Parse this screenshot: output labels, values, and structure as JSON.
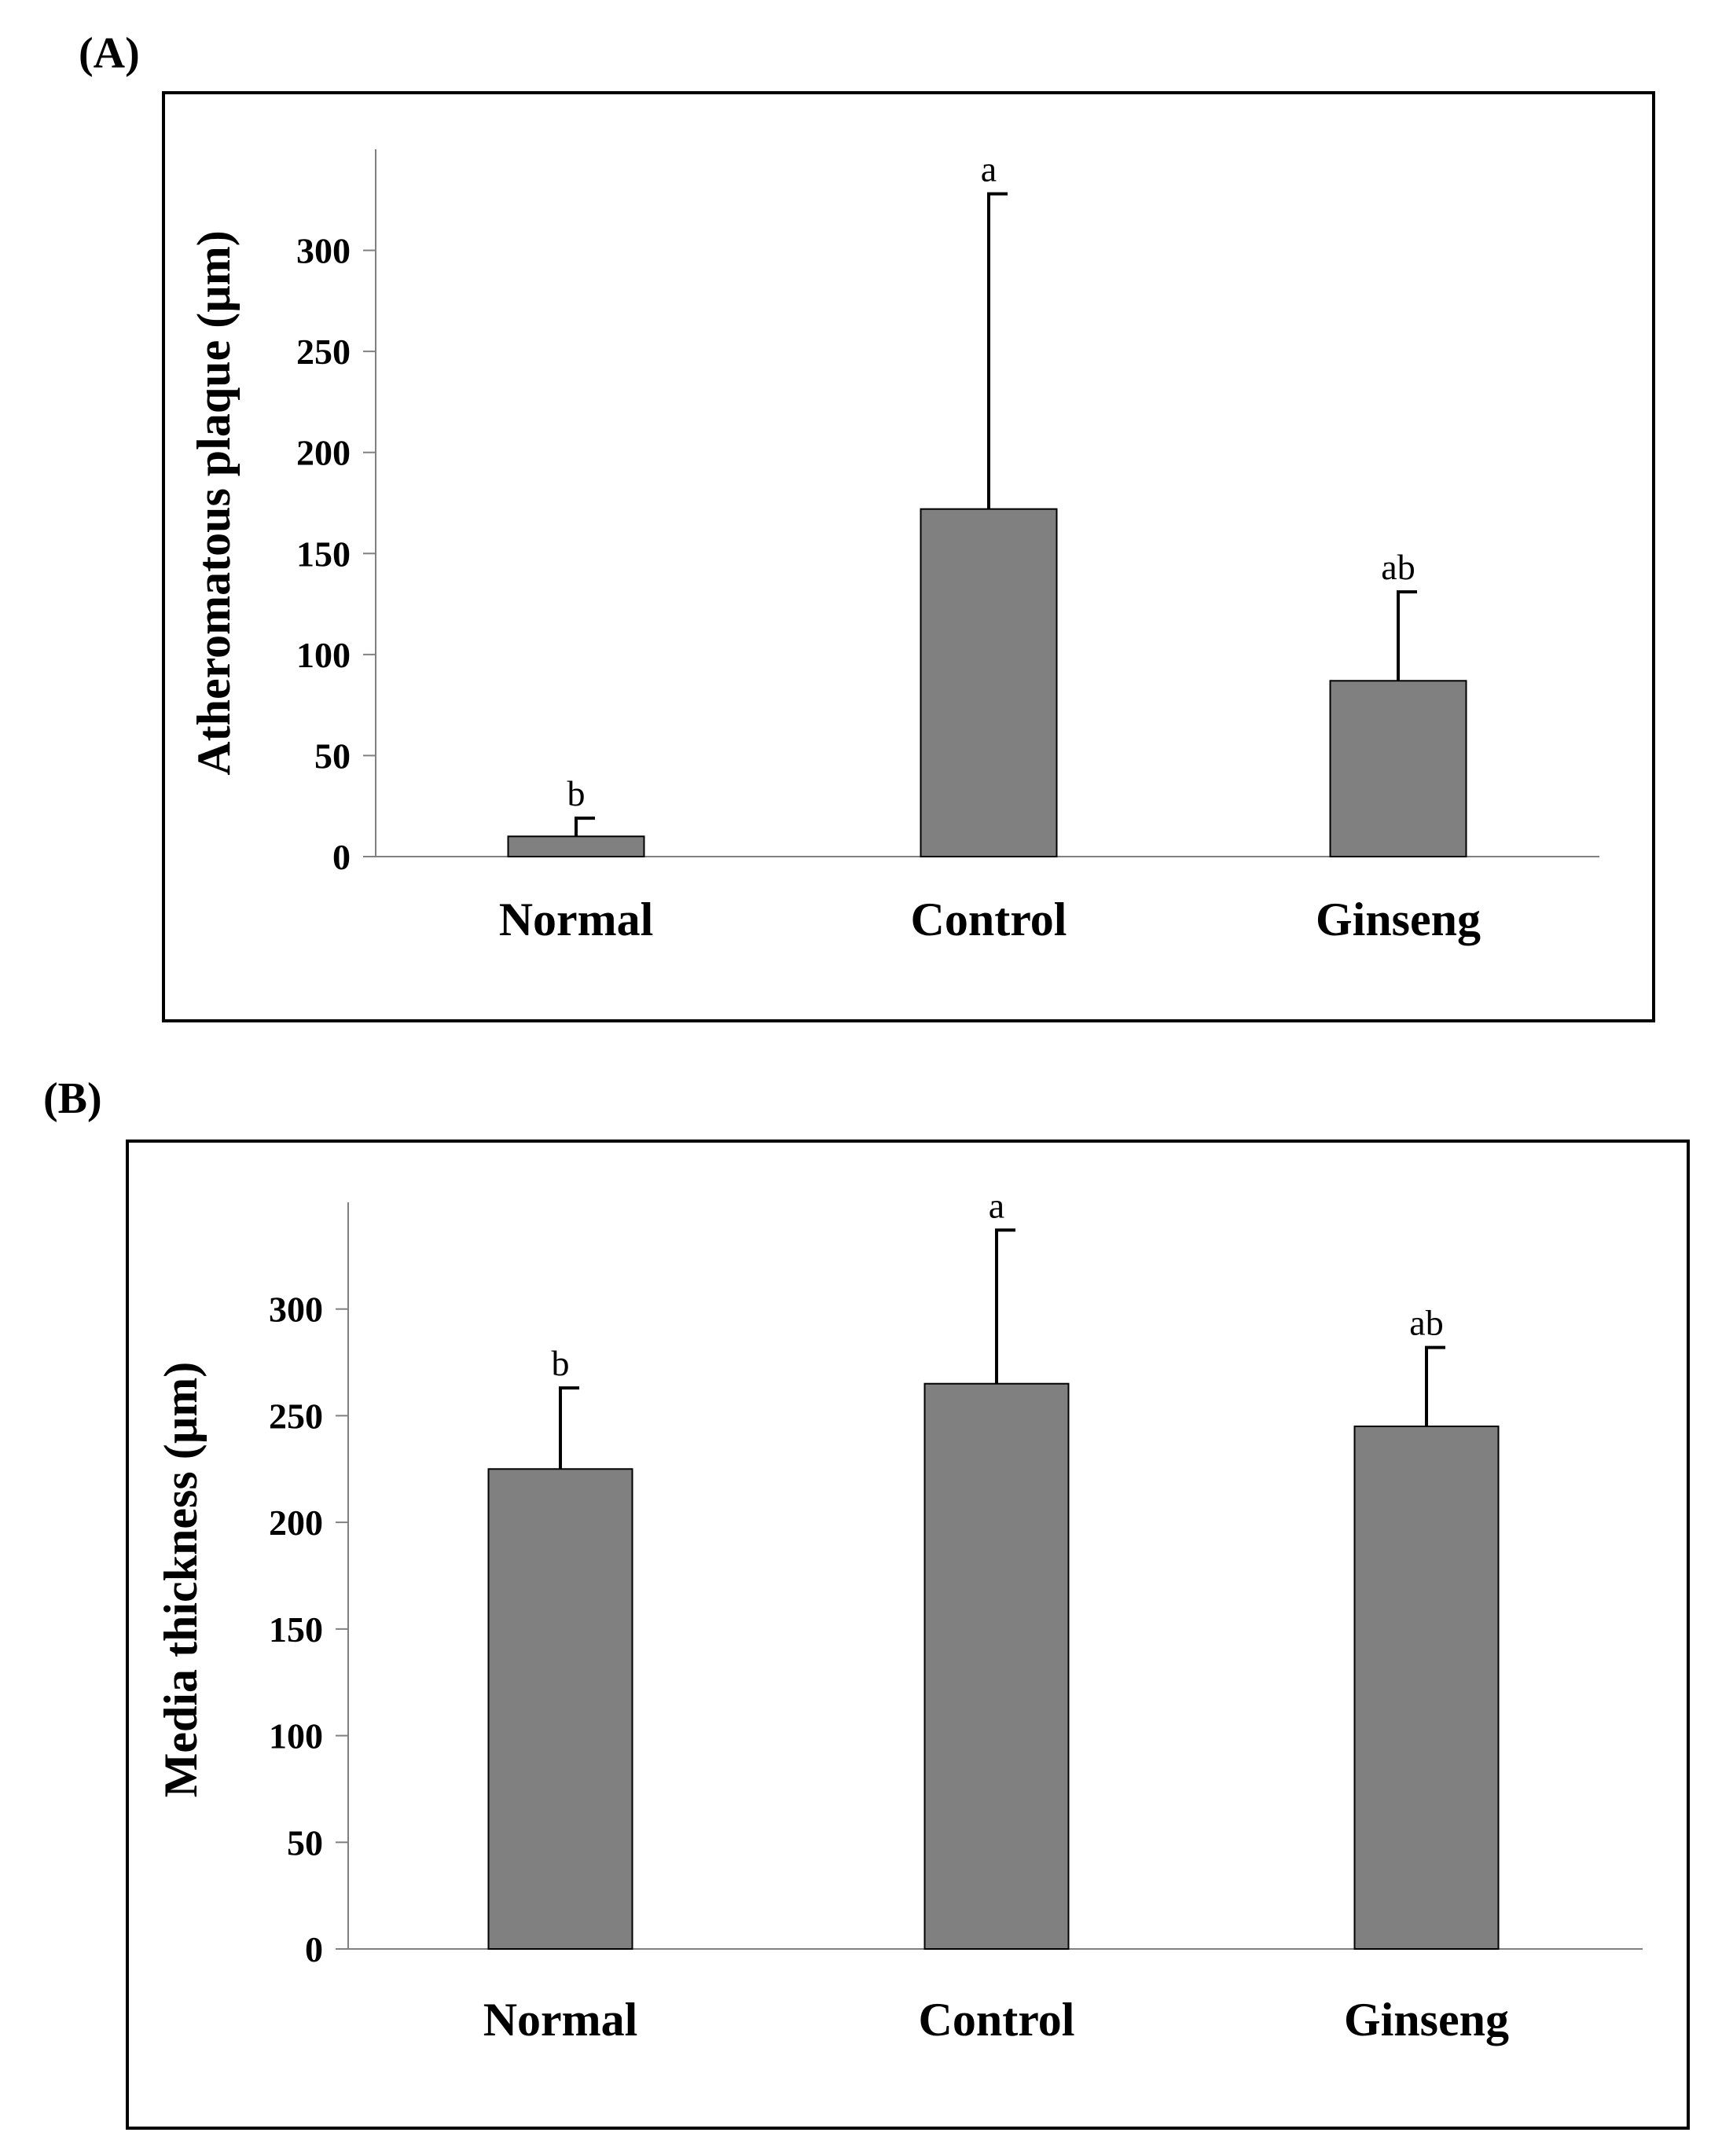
{
  "panels": [
    {
      "label": "(A)"
    },
    {
      "label": "(B)"
    }
  ],
  "chart_data": [
    {
      "type": "bar",
      "panel": "(A)",
      "title": "",
      "xlabel": "",
      "ylabel": "Atheromatous plaque (µm)",
      "categories": [
        "Normal",
        "Control",
        "Ginseng"
      ],
      "values": [
        10,
        172,
        87
      ],
      "error_upper": [
        9,
        156,
        44
      ],
      "significance": [
        "b",
        "a",
        "ab"
      ],
      "ylim": [
        0,
        350
      ],
      "yticks": [
        0,
        50,
        100,
        150,
        200,
        250,
        300
      ],
      "bar_color": "#808080",
      "grid": false
    },
    {
      "type": "bar",
      "panel": "(B)",
      "title": "",
      "xlabel": "",
      "ylabel": "Media thickness (µm)",
      "categories": [
        "Normal",
        "Control",
        "Ginseng"
      ],
      "values": [
        225,
        265,
        245
      ],
      "error_upper": [
        38,
        72,
        37
      ],
      "significance": [
        "b",
        "a",
        "ab"
      ],
      "ylim": [
        0,
        350
      ],
      "yticks": [
        0,
        50,
        100,
        150,
        200,
        250,
        300
      ],
      "bar_color": "#808080",
      "grid": false
    }
  ]
}
